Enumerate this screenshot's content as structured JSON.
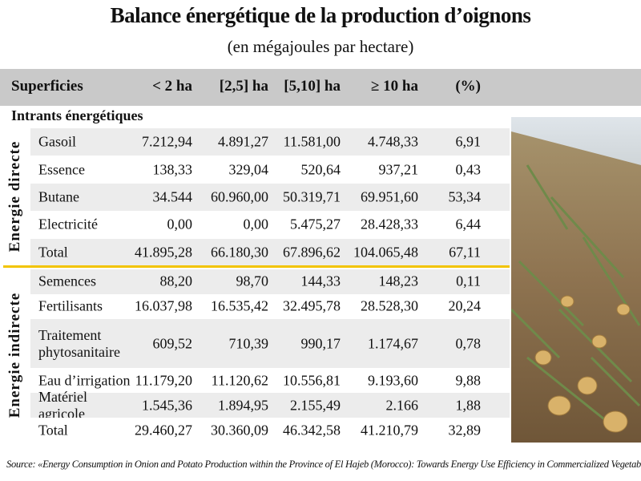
{
  "header": {
    "title": "Balance énergétique de la production d’oignons",
    "subtitle": "(en mégajoules par hectare)"
  },
  "table": {
    "columns": [
      "Superficies",
      "< 2 ha",
      "[2,5] ha",
      "[5,10] ha",
      "≥ 10 ha",
      "(%)"
    ],
    "section": "Intrants énergétiques",
    "groups": [
      {
        "label": "Energie directe",
        "rows": [
          [
            "Gasoil",
            "7.212,94",
            "4.891,27",
            "11.581,00",
            "4.748,33",
            "6,91"
          ],
          [
            "Essence",
            "138,33",
            "329,04",
            "520,64",
            "937,21",
            "0,43"
          ],
          [
            "Butane",
            "34.544",
            "60.960,00",
            "50.319,71",
            "69.951,60",
            "53,34"
          ],
          [
            "Electricité",
            "0,00",
            "0,00",
            "5.475,27",
            "28.428,33",
            "6,44"
          ],
          [
            "Total",
            "41.895,28",
            "66.180,30",
            "67.896,62",
            "104.065,48",
            "67,11"
          ]
        ]
      },
      {
        "label": "Energie indirecte",
        "rows": [
          [
            "Semences",
            "88,20",
            "98,70",
            "144,33",
            "148,23",
            "0,11"
          ],
          [
            "Fertilisants",
            "16.037,98",
            "16.535,42",
            "32.495,78",
            "28.528,30",
            "20,24"
          ],
          [
            "Traitement phytosanitaire",
            "609,52",
            "710,39",
            "990,17",
            "1.174,67",
            "0,78"
          ],
          [
            "Eau d’irrigation",
            "11.179,20",
            "11.120,62",
            "10.556,81",
            "9.193,60",
            "9,88"
          ],
          [
            "Matériel agricole",
            "1.545,36",
            "1.894,95",
            "2.155,49",
            "2.166",
            "1,88"
          ],
          [
            "Total",
            "29.460,27",
            "30.360,09",
            "46.342,58",
            "41.210,79",
            "32,89"
          ]
        ]
      }
    ]
  },
  "source": "Source: «Energy Consumption in Onion and Potato Production within the Province of El Hajeb (Morocco): Towards Energy Use Efficiency in Commercialized Vegetable Production»"
}
